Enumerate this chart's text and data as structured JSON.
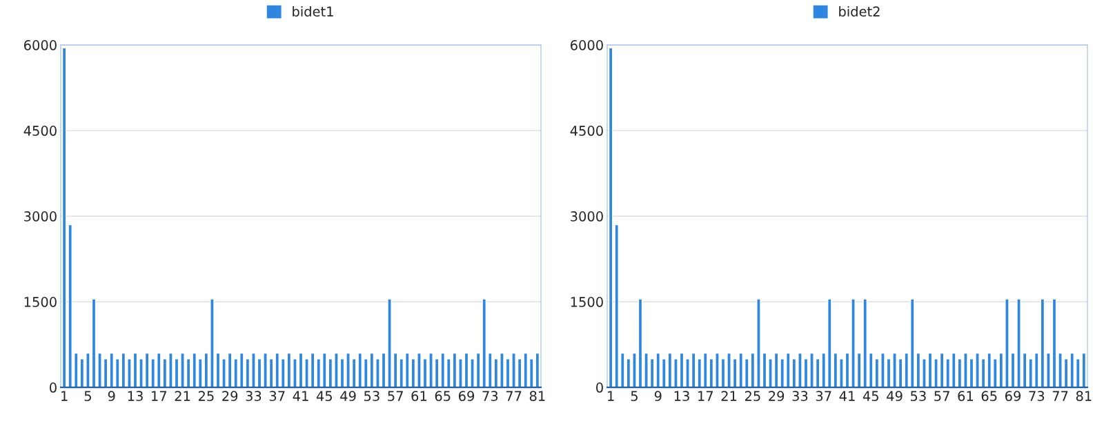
{
  "chart_data": [
    {
      "type": "bar",
      "categories": [
        "1",
        null,
        null,
        null,
        "5",
        null,
        null,
        null,
        "9",
        null,
        null,
        null,
        "13",
        null,
        null,
        null,
        "17",
        null,
        null,
        null,
        "21",
        null,
        null,
        null,
        "25",
        null,
        null,
        null,
        "29",
        null,
        null,
        null,
        "33",
        null,
        null,
        null,
        "37",
        null,
        null,
        null,
        "41",
        null,
        null,
        null,
        "45",
        null,
        null,
        null,
        "49",
        null,
        null,
        null,
        "53",
        null,
        null,
        null,
        "57",
        null,
        null,
        null,
        "61",
        null,
        null,
        null,
        "65",
        null,
        null,
        null,
        "69",
        null,
        null,
        null,
        "73",
        null,
        null,
        null,
        "77",
        null,
        null,
        null,
        "81"
      ],
      "series": [
        {
          "name": "bidet1",
          "color": "#2f86e0",
          "values": [
            5950,
            2850,
            600,
            500,
            600,
            1550,
            600,
            500,
            600,
            500,
            600,
            500,
            600,
            500,
            600,
            500,
            600,
            500,
            600,
            500,
            600,
            500,
            600,
            500,
            600,
            1550,
            600,
            500,
            600,
            500,
            600,
            500,
            600,
            500,
            600,
            500,
            600,
            500,
            600,
            500,
            600,
            500,
            600,
            500,
            600,
            500,
            600,
            500,
            600,
            500,
            600,
            500,
            600,
            500,
            600,
            1550,
            600,
            500,
            600,
            500,
            600,
            500,
            600,
            500,
            600,
            500,
            600,
            500,
            600,
            500,
            600,
            1550,
            600,
            500,
            600,
            500,
            600,
            500,
            600,
            500,
            600
          ]
        }
      ],
      "ylim": [
        0,
        6000
      ],
      "yticks": [
        0,
        1500,
        3000,
        4500,
        6000
      ],
      "grid": "y",
      "legend": "top"
    },
    {
      "type": "bar",
      "categories": [
        "1",
        null,
        null,
        null,
        "5",
        null,
        null,
        null,
        "9",
        null,
        null,
        null,
        "13",
        null,
        null,
        null,
        "17",
        null,
        null,
        null,
        "21",
        null,
        null,
        null,
        "25",
        null,
        null,
        null,
        "29",
        null,
        null,
        null,
        "33",
        null,
        null,
        null,
        "37",
        null,
        null,
        null,
        "41",
        null,
        null,
        null,
        "45",
        null,
        null,
        null,
        "49",
        null,
        null,
        null,
        "53",
        null,
        null,
        null,
        "57",
        null,
        null,
        null,
        "61",
        null,
        null,
        null,
        "65",
        null,
        null,
        null,
        "69",
        null,
        null,
        null,
        "73",
        null,
        null,
        null,
        "77",
        null,
        null,
        null,
        "81"
      ],
      "series": [
        {
          "name": "bidet2",
          "color": "#2f86e0",
          "values": [
            5950,
            2850,
            600,
            500,
            600,
            1550,
            600,
            500,
            600,
            500,
            600,
            500,
            600,
            500,
            600,
            500,
            600,
            500,
            600,
            500,
            600,
            500,
            600,
            500,
            600,
            1550,
            600,
            500,
            600,
            500,
            600,
            500,
            600,
            500,
            600,
            500,
            600,
            1550,
            600,
            500,
            600,
            1550,
            600,
            1550,
            600,
            500,
            600,
            500,
            600,
            500,
            600,
            1550,
            600,
            500,
            600,
            500,
            600,
            500,
            600,
            500,
            600,
            500,
            600,
            500,
            600,
            500,
            600,
            1550,
            600,
            1550,
            600,
            500,
            600,
            1550,
            600,
            1550,
            600,
            500,
            600,
            500,
            600
          ]
        }
      ],
      "ylim": [
        0,
        6000
      ],
      "yticks": [
        0,
        1500,
        3000,
        4500,
        6000
      ],
      "grid": "y",
      "legend": "top"
    }
  ]
}
